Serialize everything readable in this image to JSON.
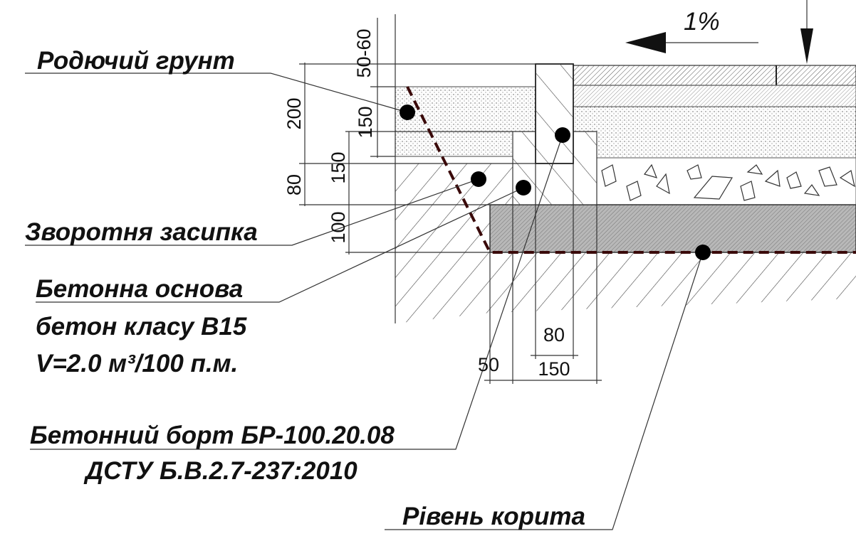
{
  "slope": "1%",
  "labels": {
    "fertile_soil": "Родючий грунт",
    "backfill": "Зворотня засипка",
    "concrete_base": "Бетонна основа",
    "concrete_class": "бетон класу В15",
    "volume": "V=2.0 м³/100 п.м.",
    "curb": "Бетонний борт БР-100.20.08",
    "standard": "ДСТУ Б.В.2.7-237:2010",
    "trough_level": "Рівень корита"
  },
  "dimensions": {
    "vertical": [
      "50-60",
      "200",
      "150",
      "150",
      "80",
      "100"
    ],
    "horizontal": [
      "80",
      "50",
      "150"
    ]
  }
}
